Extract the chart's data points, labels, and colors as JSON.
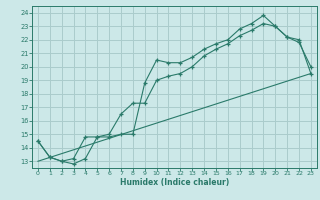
{
  "xlabel": "Humidex (Indice chaleur)",
  "bg_color": "#cce8e8",
  "grid_color": "#aacccc",
  "line_color": "#2a7a6a",
  "xlim": [
    -0.5,
    23.5
  ],
  "ylim": [
    12.5,
    24.5
  ],
  "xticks": [
    0,
    1,
    2,
    3,
    4,
    5,
    6,
    7,
    8,
    9,
    10,
    11,
    12,
    13,
    14,
    15,
    16,
    17,
    18,
    19,
    20,
    21,
    22,
    23
  ],
  "yticks": [
    13,
    14,
    15,
    16,
    17,
    18,
    19,
    20,
    21,
    22,
    23,
    24
  ],
  "line1_x": [
    0,
    1,
    2,
    3,
    4,
    5,
    6,
    7,
    8,
    9,
    10,
    11,
    12,
    13,
    14,
    15,
    16,
    17,
    18,
    19,
    20,
    21,
    22,
    23
  ],
  "line1_y": [
    14.5,
    13.3,
    13.0,
    12.8,
    13.2,
    14.8,
    14.8,
    15.0,
    15.0,
    18.8,
    20.5,
    20.3,
    20.3,
    20.7,
    21.3,
    21.7,
    22.0,
    22.8,
    23.2,
    23.8,
    23.0,
    22.2,
    22.0,
    19.5
  ],
  "line2_x": [
    0,
    1,
    2,
    3,
    4,
    5,
    6,
    7,
    8,
    9,
    10,
    11,
    12,
    13,
    14,
    15,
    16,
    17,
    18,
    19,
    20,
    21,
    22,
    23
  ],
  "line2_y": [
    14.5,
    13.3,
    13.0,
    13.2,
    14.8,
    14.8,
    15.0,
    16.5,
    17.3,
    17.3,
    19.0,
    19.3,
    19.5,
    20.0,
    20.8,
    21.3,
    21.7,
    22.3,
    22.7,
    23.2,
    23.0,
    22.2,
    21.8,
    20.0
  ],
  "line3_x": [
    0,
    23
  ],
  "line3_y": [
    13.0,
    19.5
  ]
}
